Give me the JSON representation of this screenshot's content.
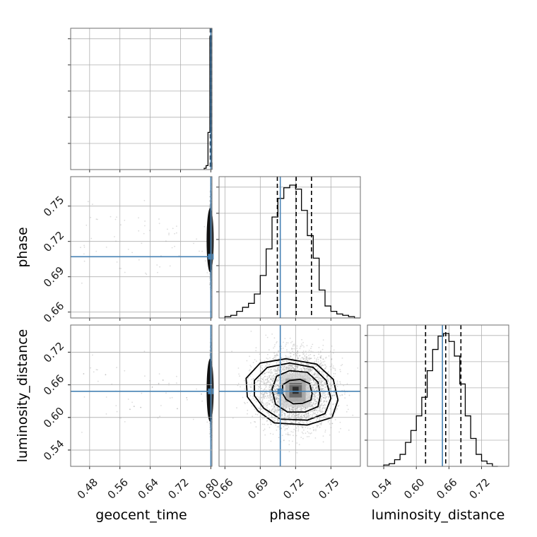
{
  "colors": {
    "truth": "#4682b4",
    "hist": "#000000",
    "scatter": "#9a9a9a"
  },
  "axis_labels": {
    "x_geocent_time": "geocent_time",
    "x_phase": "phase",
    "x_luminosity_distance": "luminosity_distance",
    "y_phase": "phase",
    "y_luminosity_distance": "luminosity_distance"
  },
  "chart_data": {
    "type": "corner",
    "parameters": [
      "geocent_time",
      "phase",
      "luminosity_distance"
    ],
    "ranges": {
      "geocent_time": [
        0.43,
        0.803
      ],
      "phase": [
        0.655,
        0.775
      ],
      "luminosity_distance": [
        0.51,
        0.77
      ]
    },
    "ticks": {
      "geocent_time": [
        "0.48",
        "0.56",
        "0.64",
        "0.72",
        "0.80"
      ],
      "phase": [
        "0.66",
        "0.69",
        "0.72",
        "0.75"
      ],
      "luminosity_distance": [
        "0.54",
        "0.60",
        "0.66",
        "0.72"
      ]
    },
    "truths": {
      "geocent_time": 0.8,
      "phase": 0.707,
      "luminosity_distance": 0.648
    },
    "quantiles": {
      "geocent_time": [
        0.7985,
        0.8005,
        0.8025
      ],
      "phase": [
        0.7045,
        0.7205,
        0.7335
      ],
      "luminosity_distance": [
        0.617,
        0.654,
        0.682
      ]
    },
    "histograms": {
      "geocent_time": {
        "edges": [
          0.7825,
          0.7875,
          0.7925,
          0.7975,
          0.8025,
          0.803
        ],
        "counts": [
          0.01,
          0.03,
          0.28,
          1.0,
          0.05
        ]
      },
      "phase": {
        "edges": [
          0.66,
          0.665,
          0.67,
          0.675,
          0.68,
          0.685,
          0.69,
          0.695,
          0.7,
          0.705,
          0.71,
          0.715,
          0.72,
          0.725,
          0.73,
          0.735,
          0.74,
          0.745,
          0.75,
          0.755,
          0.76,
          0.765,
          0.77,
          0.775
        ],
        "counts": [
          0.01,
          0.02,
          0.05,
          0.08,
          0.11,
          0.18,
          0.32,
          0.52,
          0.76,
          0.9,
          0.98,
          1.0,
          0.97,
          0.81,
          0.62,
          0.45,
          0.21,
          0.09,
          0.05,
          0.03,
          0.02,
          0.01,
          0.0
        ]
      },
      "luminosity_distance": {
        "edges": [
          0.54,
          0.55,
          0.56,
          0.57,
          0.58,
          0.59,
          0.6,
          0.61,
          0.62,
          0.63,
          0.64,
          0.65,
          0.66,
          0.67,
          0.68,
          0.69,
          0.7,
          0.71,
          0.72,
          0.73,
          0.74,
          0.75
        ],
        "counts": [
          0.01,
          0.02,
          0.05,
          0.09,
          0.18,
          0.27,
          0.38,
          0.52,
          0.72,
          0.88,
          0.98,
          1.0,
          0.94,
          0.83,
          0.62,
          0.38,
          0.21,
          0.09,
          0.04,
          0.02,
          0.0
        ]
      }
    },
    "contours_2d": {
      "phase_vs_luminosity_distance": [
        [
          [
            0.712,
            0.633
          ],
          [
            0.718,
            0.625
          ],
          [
            0.726,
            0.626
          ],
          [
            0.733,
            0.632
          ],
          [
            0.734,
            0.644
          ],
          [
            0.732,
            0.662
          ],
          [
            0.724,
            0.67
          ],
          [
            0.715,
            0.668
          ],
          [
            0.709,
            0.66
          ],
          [
            0.709,
            0.644
          ]
        ],
        [
          [
            0.703,
            0.624
          ],
          [
            0.713,
            0.61
          ],
          [
            0.728,
            0.61
          ],
          [
            0.739,
            0.62
          ],
          [
            0.741,
            0.64
          ],
          [
            0.739,
            0.665
          ],
          [
            0.73,
            0.683
          ],
          [
            0.715,
            0.686
          ],
          [
            0.704,
            0.676
          ],
          [
            0.7,
            0.652
          ]
        ],
        [
          [
            0.693,
            0.617
          ],
          [
            0.707,
            0.597
          ],
          [
            0.73,
            0.595
          ],
          [
            0.745,
            0.607
          ],
          [
            0.75,
            0.635
          ],
          [
            0.746,
            0.668
          ],
          [
            0.735,
            0.692
          ],
          [
            0.715,
            0.7
          ],
          [
            0.696,
            0.692
          ],
          [
            0.685,
            0.668
          ],
          [
            0.685,
            0.64
          ]
        ],
        [
          [
            0.688,
            0.612
          ],
          [
            0.702,
            0.59
          ],
          [
            0.73,
            0.586
          ],
          [
            0.751,
            0.6
          ],
          [
            0.756,
            0.632
          ],
          [
            0.752,
            0.67
          ],
          [
            0.738,
            0.698
          ],
          [
            0.712,
            0.708
          ],
          [
            0.69,
            0.7
          ],
          [
            0.678,
            0.672
          ],
          [
            0.679,
            0.638
          ]
        ]
      ]
    }
  }
}
